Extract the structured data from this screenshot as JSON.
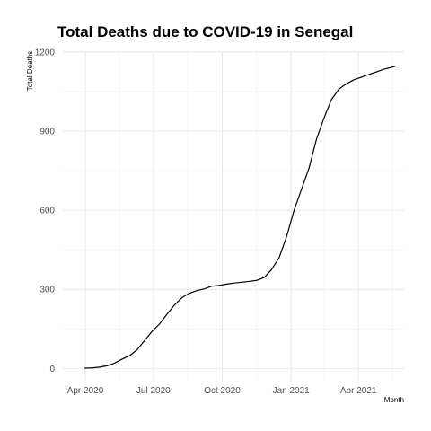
{
  "chart_data": {
    "type": "line",
    "title": "Total Deaths due to COVID-19 in Senegal",
    "xlabel": "Month",
    "ylabel": "Total Deaths",
    "x_tick_labels": [
      "Apr 2020",
      "Jul 2020",
      "Oct 2020",
      "Jan 2021",
      "Apr 2021"
    ],
    "x_tick_dates": [
      "2020-04-01",
      "2020-07-01",
      "2020-10-01",
      "2021-01-01",
      "2021-04-01"
    ],
    "xlim": [
      "2020-03-02",
      "2021-06-01"
    ],
    "y_ticks": [
      0,
      300,
      600,
      900,
      1200
    ],
    "y_tick_labels": [
      "0",
      "300",
      "600",
      "900",
      "1200"
    ],
    "ylim": [
      -50,
      1200
    ],
    "grid": true,
    "line_color": "#000000",
    "x": [
      "2020-03-31",
      "2020-04-10",
      "2020-04-20",
      "2020-04-30",
      "2020-05-10",
      "2020-05-20",
      "2020-05-30",
      "2020-06-09",
      "2020-06-19",
      "2020-06-29",
      "2020-07-09",
      "2020-07-19",
      "2020-07-29",
      "2020-08-08",
      "2020-08-18",
      "2020-08-28",
      "2020-09-07",
      "2020-09-17",
      "2020-09-27",
      "2020-10-07",
      "2020-10-17",
      "2020-10-27",
      "2020-11-06",
      "2020-11-16",
      "2020-11-26",
      "2020-12-06",
      "2020-12-16",
      "2020-12-26",
      "2021-01-05",
      "2021-01-15",
      "2021-01-25",
      "2021-02-04",
      "2021-02-14",
      "2021-02-24",
      "2021-03-06",
      "2021-03-16",
      "2021-03-26",
      "2021-04-05",
      "2021-04-15",
      "2021-04-25",
      "2021-05-05",
      "2021-05-15",
      "2021-05-22"
    ],
    "values": [
      1,
      2,
      5,
      10,
      20,
      35,
      48,
      70,
      105,
      140,
      168,
      205,
      240,
      268,
      285,
      295,
      302,
      312,
      315,
      320,
      324,
      327,
      330,
      334,
      345,
      375,
      420,
      500,
      600,
      680,
      760,
      870,
      950,
      1020,
      1060,
      1080,
      1095,
      1105,
      1115,
      1125,
      1135,
      1142,
      1148
    ]
  }
}
